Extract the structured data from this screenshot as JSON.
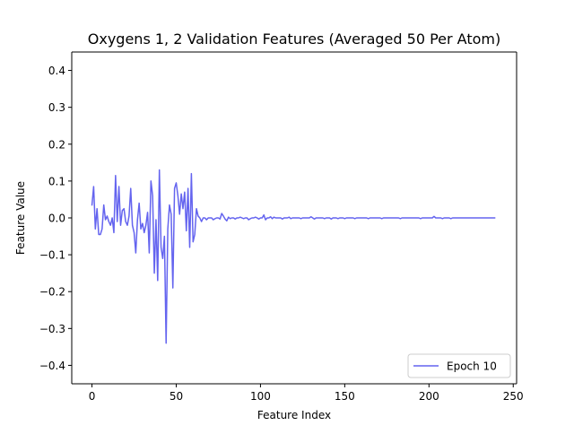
{
  "chart_data": {
    "type": "line",
    "title": "Oxygens 1, 2 Validation Features (Averaged 50 Per Atom)",
    "xlabel": "Feature Index",
    "ylabel": "Feature Value",
    "xlim": [
      -12,
      252
    ],
    "ylim": [
      -0.45,
      0.45
    ],
    "xticks": [
      0,
      50,
      100,
      150,
      200,
      250
    ],
    "yticks": [
      -0.4,
      -0.3,
      -0.2,
      -0.1,
      0.0,
      0.1,
      0.2,
      0.3,
      0.4
    ],
    "xtick_labels": [
      "0",
      "50",
      "100",
      "150",
      "200",
      "250"
    ],
    "ytick_labels": [
      "−0.4",
      "−0.3",
      "−0.2",
      "−0.1",
      "0.0",
      "0.1",
      "0.2",
      "0.3",
      "0.4"
    ],
    "grid": false,
    "legend_position": "lower-right",
    "series": [
      {
        "name": "Epoch 10",
        "color": "#6464ef",
        "x_start": 0,
        "x_step": 1,
        "values": [
          0.035,
          0.085,
          -0.03,
          0.025,
          -0.045,
          -0.045,
          -0.03,
          0.035,
          -0.005,
          0.005,
          -0.01,
          -0.02,
          0.0,
          -0.04,
          0.115,
          -0.01,
          0.085,
          -0.02,
          0.02,
          0.025,
          -0.01,
          -0.02,
          0.005,
          0.08,
          -0.02,
          -0.04,
          -0.095,
          -0.005,
          0.04,
          -0.03,
          -0.015,
          -0.04,
          -0.02,
          0.015,
          -0.095,
          0.1,
          0.06,
          -0.15,
          -0.005,
          -0.17,
          0.13,
          -0.08,
          -0.11,
          -0.05,
          -0.34,
          -0.03,
          0.035,
          0.01,
          -0.19,
          0.08,
          0.095,
          0.06,
          0.01,
          0.065,
          0.025,
          0.07,
          -0.035,
          0.08,
          -0.08,
          0.12,
          -0.065,
          -0.045,
          0.025,
          0.005,
          0.0,
          -0.01,
          0.0,
          0.0,
          -0.005,
          0.0,
          0.0,
          0.0,
          -0.005,
          -0.002,
          0.0,
          0.0,
          -0.003,
          0.012,
          0.005,
          -0.003,
          -0.008,
          0.002,
          -0.002,
          0.0,
          0.0,
          -0.003,
          0.0,
          0.0,
          0.002,
          0.0,
          -0.002,
          0.0,
          0.0,
          -0.005,
          -0.002,
          0.0,
          0.0,
          0.002,
          0.0,
          -0.003,
          0.0,
          0.0,
          0.008,
          -0.005,
          0.0,
          0.0,
          0.003,
          -0.002,
          0.002,
          0.0,
          0.0,
          0.0,
          0.0,
          -0.003,
          0.0,
          0.0,
          0.0,
          0.002,
          -0.002,
          0.0,
          0.0,
          0.0,
          0.0,
          0.0,
          -0.002,
          0.0,
          0.0,
          0.0,
          0.0,
          0.0,
          0.003,
          0.0,
          -0.003,
          0.0,
          0.0,
          0.0,
          0.0,
          0.0,
          -0.002,
          0.0,
          0.0,
          0.0,
          -0.003,
          0.0,
          0.0,
          0.0,
          -0.002,
          0.0,
          0.0,
          0.0,
          -0.002,
          0.0,
          0.0,
          0.0,
          0.0,
          0.0,
          -0.002,
          0.0,
          0.0,
          0.0,
          0.0,
          0.0,
          0.0,
          0.0,
          -0.002,
          0.0,
          0.0,
          0.0,
          0.0,
          0.0,
          0.0,
          0.0,
          -0.002,
          0.0,
          0.0,
          0.0,
          0.0,
          0.0,
          0.0,
          0.0,
          0.0,
          0.0,
          0.0,
          -0.002,
          0.0,
          0.0,
          0.0,
          0.0,
          0.0,
          0.0,
          0.0,
          0.0,
          0.0,
          0.0,
          0.0,
          -0.002,
          0.0,
          0.0,
          0.0,
          0.0,
          0.0,
          0.0,
          0.0,
          0.004,
          0.0,
          0.0,
          0.0,
          0.0,
          -0.002,
          0.0,
          0.0,
          0.0,
          0.0,
          -0.002,
          0.0,
          0.0,
          0.0,
          0.0,
          0.0,
          0.0,
          0.0,
          0.0,
          0.0,
          0.0,
          0.0,
          0.0,
          0.0,
          0.0,
          0.0,
          0.0,
          0.0,
          0.0,
          0.0,
          0.0,
          0.0,
          0.0,
          0.0,
          0.0,
          0.0,
          0.0
        ]
      }
    ]
  }
}
